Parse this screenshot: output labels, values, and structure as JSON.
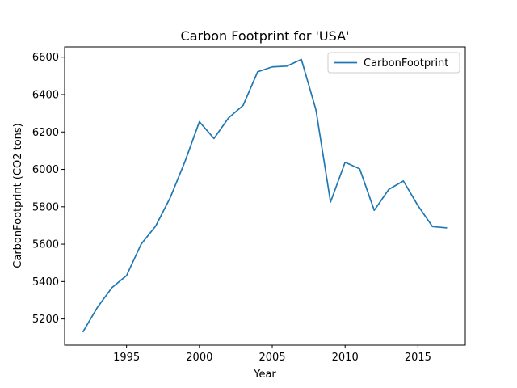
{
  "chart_data": {
    "type": "line",
    "title": "Carbon Footprint for 'USA'",
    "xlabel": "Year",
    "ylabel": "CarbonFootprint (CO2 tons)",
    "xlim": [
      1990.75,
      2018.25
    ],
    "ylim": [
      5060,
      6655
    ],
    "xticks": [
      1995,
      2000,
      2005,
      2010,
      2015
    ],
    "yticks": [
      5200,
      5400,
      5600,
      5800,
      6000,
      6200,
      6400,
      6600
    ],
    "grid": false,
    "legend_position": "top-right",
    "series": [
      {
        "name": "CarbonFootprint",
        "color": "#1f77b4",
        "x": [
          1992,
          1993,
          1994,
          1995,
          1996,
          1997,
          1998,
          1999,
          2000,
          2001,
          2002,
          2003,
          2004,
          2005,
          2006,
          2007,
          2008,
          2009,
          2010,
          2011,
          2012,
          2013,
          2014,
          2015,
          2016,
          2017
        ],
        "y": [
          5130,
          5262,
          5368,
          5432,
          5600,
          5697,
          5849,
          6040,
          6255,
          6165,
          6275,
          6342,
          6522,
          6548,
          6552,
          6588,
          6318,
          5825,
          6038,
          6003,
          5781,
          5893,
          5938,
          5806,
          5694,
          5687
        ]
      }
    ]
  }
}
